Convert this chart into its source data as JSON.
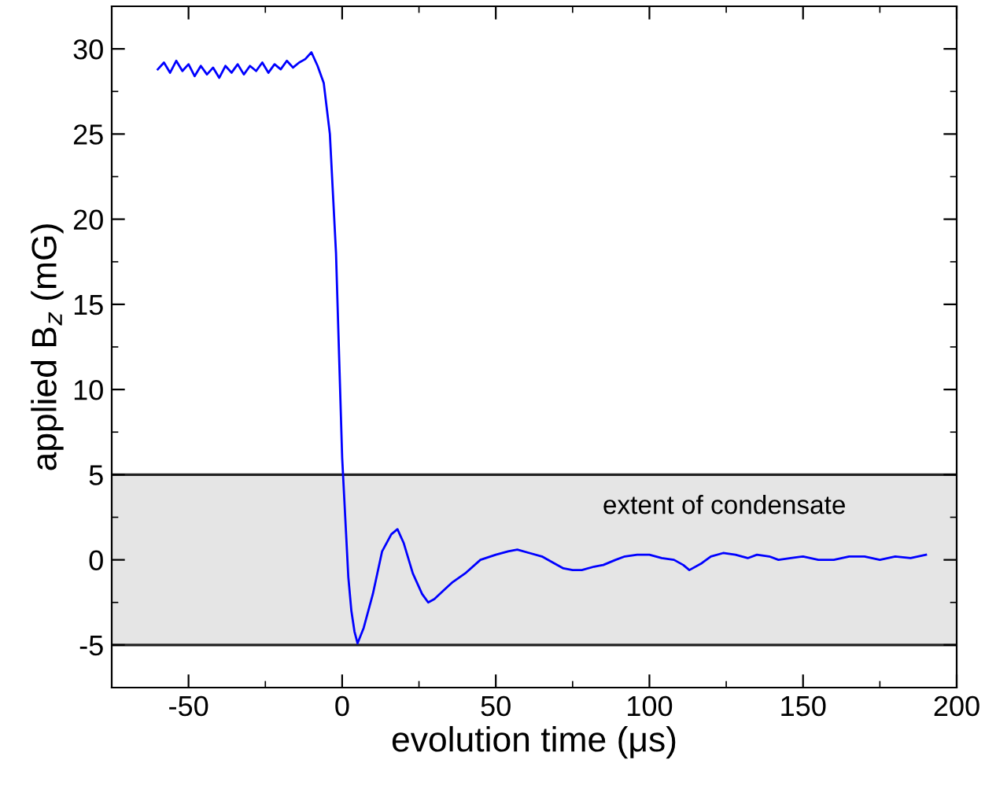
{
  "chart_data": {
    "type": "line",
    "xlabel": "evolution time (μs)",
    "ylabel": "applied B$_{z}$ (mG)",
    "xlim": [
      -75,
      200
    ],
    "ylim": [
      -7.5,
      32.5
    ],
    "xticks": [
      -50,
      0,
      50,
      100,
      150,
      200
    ],
    "yticks": [
      -5,
      0,
      5,
      10,
      15,
      20,
      25,
      30
    ],
    "grid": false,
    "marker": "none",
    "line_style": "solid",
    "bands": [
      {
        "axis": "y",
        "from": -5,
        "to": 5,
        "color": "#e5e5e5"
      }
    ],
    "ref_lines": [
      {
        "axis": "y",
        "value": 5,
        "color": "#222222"
      },
      {
        "axis": "y",
        "value": -5,
        "color": "#222222"
      }
    ],
    "annotations": [
      "extent of condensate"
    ],
    "series": [
      {
        "color": "#0000ff",
        "x": [
          -60,
          -58,
          -56,
          -54,
          -52,
          -50,
          -48,
          -46,
          -44,
          -42,
          -40,
          -38,
          -36,
          -34,
          -32,
          -30,
          -28,
          -26,
          -24,
          -22,
          -20,
          -18,
          -16,
          -14,
          -12,
          -10,
          -8,
          -6,
          -4,
          -2,
          0,
          1,
          2,
          3,
          4,
          5,
          7,
          10,
          13,
          16,
          18,
          20,
          23,
          26,
          28,
          30,
          33,
          36,
          40,
          45,
          50,
          54,
          57,
          61,
          65,
          69,
          72,
          75,
          78,
          82,
          85,
          89,
          92,
          96,
          100,
          104,
          108,
          111,
          113,
          117,
          120,
          124,
          128,
          132,
          135,
          139,
          142,
          146,
          150,
          155,
          160,
          165,
          170,
          175,
          180,
          185,
          190
        ],
        "values": [
          28.8,
          29.2,
          28.6,
          29.3,
          28.7,
          29.1,
          28.4,
          29.0,
          28.5,
          28.9,
          28.3,
          29.0,
          28.6,
          29.1,
          28.5,
          29.0,
          28.7,
          29.2,
          28.6,
          29.1,
          28.8,
          29.3,
          28.9,
          29.2,
          29.4,
          29.8,
          29.0,
          28.0,
          25.0,
          18.0,
          6.0,
          2.5,
          -1.0,
          -3.0,
          -4.2,
          -4.9,
          -4.0,
          -2.0,
          0.5,
          1.5,
          1.8,
          1.0,
          -0.8,
          -2.0,
          -2.5,
          -2.3,
          -1.8,
          -1.3,
          -0.8,
          0.0,
          0.3,
          0.5,
          0.6,
          0.4,
          0.2,
          -0.2,
          -0.5,
          -0.6,
          -0.6,
          -0.4,
          -0.3,
          0.0,
          0.2,
          0.3,
          0.3,
          0.1,
          0.0,
          -0.3,
          -0.6,
          -0.2,
          0.2,
          0.4,
          0.3,
          0.1,
          0.3,
          0.2,
          0.0,
          0.1,
          0.2,
          0.0,
          0.0,
          0.2,
          0.2,
          0.0,
          0.2,
          0.1,
          0.3
        ]
      }
    ]
  }
}
